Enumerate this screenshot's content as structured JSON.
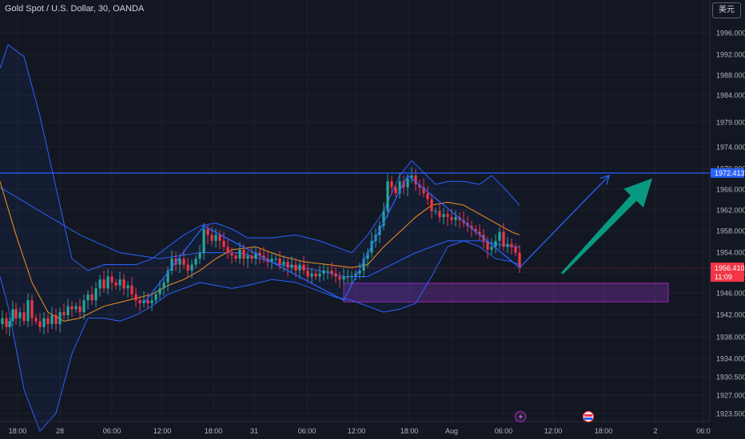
{
  "header": {
    "title": "Gold Spot / U.S. Dollar, 30, OANDA",
    "currency_label": "美元"
  },
  "colors": {
    "background": "#131722",
    "grid": "#1e222d",
    "axis_text": "#b2b5be",
    "up": "#26a69a",
    "down": "#f23645",
    "bands": "#2962ff",
    "ma": "#f7931a",
    "zone_fill": "#5c2a82",
    "zone_stroke": "#9c27b0",
    "arrow": "#089981"
  },
  "chart_data": {
    "type": "candlestick",
    "symbol": "Gold Spot / U.S. Dollar",
    "interval": "30",
    "source": "OANDA",
    "price_ticks": [
      "1996.000",
      "1992.000",
      "1988.000",
      "1984.000",
      "1979.000",
      "1974.000",
      "1970.000",
      "1966.000",
      "1962.000",
      "1958.000",
      "1954.000",
      "1950.000",
      "1946.000",
      "1942.000",
      "1938.000",
      "1934.000",
      "1930.500",
      "1927.000",
      "1923.500"
    ],
    "time_ticks": [
      "18:00",
      "28",
      "06:00",
      "12:00",
      "18:00",
      "31",
      "06:00",
      "12:00",
      "18:00",
      "Aug",
      "06:00",
      "12:00",
      "18:00",
      "2",
      "06:0"
    ],
    "ylim": [
      1922,
      1999
    ],
    "horizontal_line": {
      "price": 1972.413,
      "label": "1972.413"
    },
    "current_price": {
      "price": 1956.41,
      "label": "1956.410",
      "countdown": "11:09"
    },
    "price_points": [
      [
        -6,
        1947
      ],
      [
        3,
        1948
      ],
      [
        8,
        1946.5
      ],
      [
        12,
        1947.5
      ],
      [
        16,
        1949.5
      ],
      [
        20,
        1948
      ],
      [
        25,
        1949
      ],
      [
        30,
        1947.5
      ],
      [
        35,
        1951
      ],
      [
        40,
        1948
      ],
      [
        45,
        1947.5
      ],
      [
        50,
        1946.5
      ],
      [
        55,
        1948
      ],
      [
        60,
        1947
      ],
      [
        65,
        1948.5
      ],
      [
        70,
        1947
      ],
      [
        75,
        1949
      ],
      [
        80,
        1948.5
      ],
      [
        85,
        1950
      ],
      [
        90,
        1949.5
      ],
      [
        95,
        1950
      ],
      [
        100,
        1949
      ],
      [
        105,
        1951
      ],
      [
        110,
        1952
      ],
      [
        115,
        1951
      ],
      [
        120,
        1953
      ],
      [
        125,
        1954.5
      ],
      [
        130,
        1953
      ],
      [
        135,
        1955
      ],
      [
        140,
        1954
      ],
      [
        145,
        1953.5
      ],
      [
        150,
        1954.5
      ],
      [
        155,
        1953
      ],
      [
        160,
        1953.5
      ],
      [
        165,
        1952
      ],
      [
        170,
        1951
      ],
      [
        175,
        1950.5
      ],
      [
        180,
        1951
      ],
      [
        185,
        1950.5
      ],
      [
        190,
        1951
      ],
      [
        195,
        1952
      ],
      [
        200,
        1953
      ],
      [
        205,
        1954
      ],
      [
        210,
        1956
      ],
      [
        215,
        1958
      ],
      [
        220,
        1957
      ],
      [
        225,
        1958
      ],
      [
        230,
        1957
      ],
      [
        235,
        1956
      ],
      [
        240,
        1957
      ],
      [
        245,
        1958
      ],
      [
        250,
        1959
      ],
      [
        255,
        1963
      ],
      [
        260,
        1962
      ],
      [
        265,
        1961
      ],
      [
        270,
        1962
      ],
      [
        275,
        1961
      ],
      [
        280,
        1960
      ],
      [
        285,
        1959
      ],
      [
        290,
        1958.5
      ],
      [
        295,
        1958
      ],
      [
        300,
        1959.5
      ],
      [
        305,
        1958
      ],
      [
        310,
        1958.5
      ],
      [
        315,
        1958
      ],
      [
        320,
        1959
      ],
      [
        325,
        1958.5
      ],
      [
        330,
        1958
      ],
      [
        335,
        1957.5
      ],
      [
        340,
        1958
      ],
      [
        345,
        1958
      ],
      [
        350,
        1957
      ],
      [
        355,
        1957.5
      ],
      [
        360,
        1956.5
      ],
      [
        365,
        1957
      ],
      [
        370,
        1956
      ],
      [
        375,
        1957
      ],
      [
        380,
        1956
      ],
      [
        385,
        1955
      ],
      [
        390,
        1955.5
      ],
      [
        395,
        1955
      ],
      [
        400,
        1955.5
      ],
      [
        405,
        1956
      ],
      [
        410,
        1956
      ],
      [
        415,
        1955.5
      ],
      [
        420,
        1955
      ],
      [
        425,
        1954.5
      ],
      [
        430,
        1955
      ],
      [
        435,
        1955
      ],
      [
        440,
        1955
      ],
      [
        445,
        1955.5
      ],
      [
        450,
        1956
      ],
      [
        455,
        1958
      ],
      [
        460,
        1959
      ],
      [
        465,
        1961
      ],
      [
        470,
        1962
      ],
      [
        475,
        1963.5
      ],
      [
        480,
        1966
      ],
      [
        485,
        1971
      ],
      [
        490,
        1970
      ],
      [
        495,
        1969
      ],
      [
        500,
        1971
      ],
      [
        505,
        1970
      ],
      [
        510,
        1971.5
      ],
      [
        515,
        1972
      ],
      [
        520,
        1970.5
      ],
      [
        525,
        1970
      ],
      [
        530,
        1969
      ],
      [
        535,
        1968
      ],
      [
        540,
        1966
      ],
      [
        545,
        1966
      ],
      [
        550,
        1965
      ],
      [
        555,
        1965.5
      ],
      [
        560,
        1965
      ],
      [
        565,
        1964.5
      ],
      [
        570,
        1965
      ],
      [
        575,
        1964.5
      ],
      [
        580,
        1964
      ],
      [
        585,
        1963.5
      ],
      [
        590,
        1963
      ],
      [
        595,
        1962.5
      ],
      [
        600,
        1962
      ],
      [
        605,
        1961
      ],
      [
        610,
        1959.5
      ],
      [
        615,
        1960
      ],
      [
        620,
        1961
      ],
      [
        625,
        1962.5
      ],
      [
        630,
        1960
      ],
      [
        635,
        1960.5
      ],
      [
        640,
        1960
      ],
      [
        645,
        1959
      ],
      [
        650,
        1956.5
      ]
    ],
    "bollinger_upper": [
      [
        0,
        1990
      ],
      [
        10,
        1994
      ],
      [
        30,
        1992
      ],
      [
        50,
        1982
      ],
      [
        70,
        1970
      ],
      [
        90,
        1958
      ],
      [
        110,
        1956
      ],
      [
        130,
        1957
      ],
      [
        150,
        1957
      ],
      [
        170,
        1957
      ],
      [
        190,
        1958
      ],
      [
        210,
        1960
      ],
      [
        230,
        1962
      ],
      [
        250,
        1963.5
      ],
      [
        270,
        1964
      ],
      [
        290,
        1963
      ],
      [
        310,
        1961.5
      ],
      [
        340,
        1961.5
      ],
      [
        370,
        1962
      ],
      [
        400,
        1961
      ],
      [
        420,
        1960
      ],
      [
        440,
        1959
      ],
      [
        460,
        1962
      ],
      [
        480,
        1966
      ],
      [
        500,
        1972
      ],
      [
        515,
        1974.5
      ],
      [
        530,
        1972.5
      ],
      [
        545,
        1970.5
      ],
      [
        560,
        1971
      ],
      [
        580,
        1971
      ],
      [
        600,
        1970.5
      ],
      [
        615,
        1972
      ],
      [
        630,
        1970
      ],
      [
        650,
        1967
      ]
    ],
    "bollinger_middle": [
      [
        0,
        1970
      ],
      [
        50,
        1966
      ],
      [
        100,
        1962
      ],
      [
        150,
        1959
      ],
      [
        200,
        1958
      ],
      [
        250,
        1959
      ],
      [
        300,
        1959
      ],
      [
        350,
        1957
      ],
      [
        400,
        1956
      ],
      [
        430,
        1955
      ],
      [
        460,
        1955
      ],
      [
        490,
        1957
      ],
      [
        520,
        1959
      ],
      [
        560,
        1961
      ],
      [
        600,
        1961
      ],
      [
        640,
        1960
      ],
      [
        650,
        1960
      ]
    ],
    "bollinger_lower": [
      [
        0,
        1955
      ],
      [
        10,
        1950
      ],
      [
        30,
        1936
      ],
      [
        50,
        1929
      ],
      [
        70,
        1932
      ],
      [
        90,
        1942
      ],
      [
        110,
        1948
      ],
      [
        130,
        1948
      ],
      [
        150,
        1947.5
      ],
      [
        170,
        1948.5
      ],
      [
        190,
        1950
      ],
      [
        210,
        1952
      ],
      [
        230,
        1953
      ],
      [
        250,
        1954
      ],
      [
        270,
        1953.5
      ],
      [
        290,
        1953
      ],
      [
        310,
        1953.5
      ],
      [
        340,
        1954.5
      ],
      [
        370,
        1954
      ],
      [
        400,
        1952.5
      ],
      [
        420,
        1951.5
      ],
      [
        440,
        1951
      ],
      [
        460,
        1950
      ],
      [
        480,
        1949
      ],
      [
        500,
        1949.5
      ],
      [
        520,
        1950.5
      ],
      [
        540,
        1955
      ],
      [
        560,
        1960
      ],
      [
        580,
        1961
      ],
      [
        600,
        1960
      ],
      [
        620,
        1958
      ],
      [
        640,
        1957.5
      ],
      [
        650,
        1957
      ]
    ],
    "moving_average": [
      [
        0,
        1971
      ],
      [
        20,
        1962
      ],
      [
        40,
        1954
      ],
      [
        60,
        1949
      ],
      [
        80,
        1947.5
      ],
      [
        100,
        1948
      ],
      [
        130,
        1950
      ],
      [
        160,
        1951
      ],
      [
        190,
        1952
      ],
      [
        210,
        1953.5
      ],
      [
        230,
        1954.5
      ],
      [
        250,
        1956
      ],
      [
        270,
        1958
      ],
      [
        290,
        1959.5
      ],
      [
        320,
        1960
      ],
      [
        350,
        1958.5
      ],
      [
        380,
        1957.5
      ],
      [
        410,
        1957
      ],
      [
        440,
        1956.5
      ],
      [
        460,
        1957
      ],
      [
        480,
        1960
      ],
      [
        500,
        1962.5
      ],
      [
        520,
        1965
      ],
      [
        540,
        1967
      ],
      [
        560,
        1967.5
      ],
      [
        580,
        1967
      ],
      [
        600,
        1965.5
      ],
      [
        620,
        1964
      ],
      [
        640,
        1962.5
      ],
      [
        650,
        1962
      ]
    ],
    "trend_lines": [
      [
        [
          180,
          1950.5
        ],
        [
          255,
          1963.5
        ],
        [
          430,
          1951
        ],
        [
          510,
          1972
        ],
        [
          650,
          1956.5
        ]
      ],
      [
        [
          650,
          1956.5
        ],
        [
          762,
          1972
        ]
      ]
    ],
    "zone": {
      "x1": 430,
      "x2": 836,
      "price_top": 1954,
      "price_bottom": 1951
    },
    "big_arrow": {
      "from": [
        703,
        1955.5
      ],
      "to": [
        816,
        1971.5
      ]
    }
  }
}
